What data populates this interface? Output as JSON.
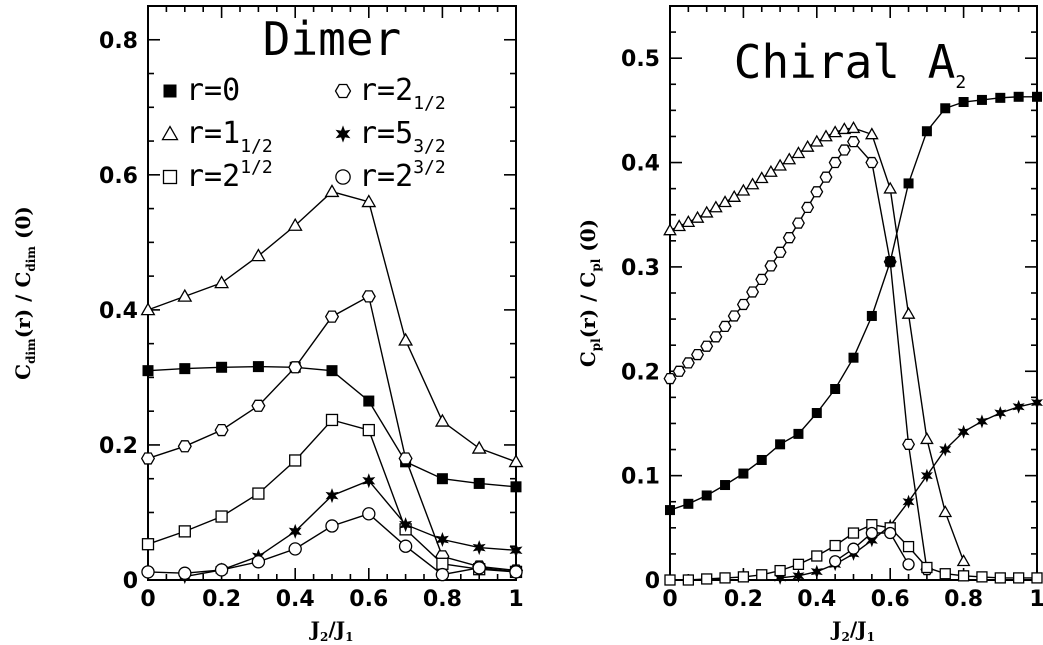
{
  "chart_data": [
    {
      "type": "line",
      "title": "Dimer",
      "xlabel": {
        "main": "J",
        "sub1": "2",
        "mid": "/J",
        "sub2": "1"
      },
      "ylabel": {
        "a": "C",
        "a_sub": "dim",
        "b": "(r) / C",
        "b_sub": "dim",
        "c": " (0)"
      },
      "xlim": [
        0,
        1
      ],
      "ylim": [
        0,
        0.85
      ],
      "xticks": [
        "0",
        "0.2",
        "0.4",
        "0.6",
        "0.8",
        "1"
      ],
      "xtick_values": [
        0,
        0.2,
        0.4,
        0.6,
        0.8,
        1
      ],
      "yticks": [
        "0",
        "0.2",
        "0.4",
        "0.6",
        "0.8"
      ],
      "ytick_values": [
        0,
        0.2,
        0.4,
        0.6,
        0.8
      ],
      "legend_placement": "top",
      "legend": [
        {
          "symbol": "filled-square",
          "base": "r=0",
          "script": "",
          "script_pos": ""
        },
        {
          "symbol": "hexagon",
          "base": "r=2",
          "script": "1/2",
          "script_pos": "sub"
        },
        {
          "symbol": "triangle",
          "base": "r=1",
          "script": "1/2",
          "script_pos": "sub"
        },
        {
          "symbol": "star",
          "base": "r=5",
          "script": "3/2",
          "script_pos": "sub"
        },
        {
          "symbol": "square",
          "base": "r=2",
          "script": "1/2",
          "script_pos": "sup"
        },
        {
          "symbol": "circle",
          "base": "r=2",
          "script": "3/2",
          "script_pos": "sup"
        }
      ],
      "series": [
        {
          "symbol": "triangle",
          "x": [
            0,
            0.1,
            0.2,
            0.3,
            0.4,
            0.5,
            0.6,
            0.7,
            0.8,
            0.9,
            1.0
          ],
          "y": [
            0.4,
            0.42,
            0.44,
            0.48,
            0.525,
            0.575,
            0.56,
            0.355,
            0.235,
            0.195,
            0.175
          ]
        },
        {
          "symbol": "filled-square",
          "x": [
            0,
            0.1,
            0.2,
            0.3,
            0.4,
            0.5,
            0.6,
            0.7,
            0.8,
            0.9,
            1.0
          ],
          "y": [
            0.31,
            0.313,
            0.315,
            0.316,
            0.315,
            0.31,
            0.265,
            0.175,
            0.15,
            0.143,
            0.138
          ]
        },
        {
          "symbol": "hexagon",
          "x": [
            0,
            0.1,
            0.2,
            0.3,
            0.4,
            0.5,
            0.6,
            0.7,
            0.8,
            0.9,
            1.0
          ],
          "y": [
            0.18,
            0.198,
            0.222,
            0.258,
            0.315,
            0.39,
            0.42,
            0.18,
            0.035,
            0.02,
            0.014
          ]
        },
        {
          "symbol": "square",
          "x": [
            0,
            0.1,
            0.2,
            0.3,
            0.4,
            0.5,
            0.6,
            0.7,
            0.8,
            0.9,
            1.0
          ],
          "y": [
            0.053,
            0.072,
            0.094,
            0.128,
            0.177,
            0.237,
            0.222,
            0.075,
            0.024,
            0.016,
            0.012
          ]
        },
        {
          "symbol": "star",
          "x": [
            0.1,
            0.2,
            0.3,
            0.4,
            0.5,
            0.6,
            0.7,
            0.8,
            0.9,
            1.0
          ],
          "y": [
            0.005,
            0.015,
            0.035,
            0.072,
            0.125,
            0.147,
            0.082,
            0.06,
            0.048,
            0.044
          ]
        },
        {
          "symbol": "circle",
          "x": [
            0,
            0.1,
            0.2,
            0.3,
            0.4,
            0.5,
            0.6,
            0.7,
            0.8,
            0.9,
            1.0
          ],
          "y": [
            0.012,
            0.01,
            0.015,
            0.027,
            0.046,
            0.08,
            0.098,
            0.05,
            0.008,
            0.018,
            0.012
          ]
        }
      ]
    },
    {
      "type": "line",
      "title": "Chiral A",
      "title_sub": "2",
      "xlabel": {
        "main": "J",
        "sub1": "2",
        "mid": "/J",
        "sub2": "1"
      },
      "ylabel": {
        "a": "C",
        "a_sub": "pl",
        "b": "(r) / C",
        "b_sub": "pl",
        "c": " (0)"
      },
      "xlim": [
        0,
        1
      ],
      "ylim": [
        0,
        0.55
      ],
      "xticks": [
        "0",
        "0.2",
        "0.4",
        "0.6",
        "0.8",
        "1"
      ],
      "xtick_values": [
        0,
        0.2,
        0.4,
        0.6,
        0.8,
        1
      ],
      "yticks": [
        "0",
        "0.1",
        "0.2",
        "0.3",
        "0.4",
        "0.5"
      ],
      "ytick_values": [
        0,
        0.1,
        0.2,
        0.3,
        0.4,
        0.5
      ],
      "series": [
        {
          "symbol": "triangle",
          "x": [
            0,
            0.025,
            0.05,
            0.075,
            0.1,
            0.125,
            0.15,
            0.175,
            0.2,
            0.225,
            0.25,
            0.275,
            0.3,
            0.325,
            0.35,
            0.375,
            0.4,
            0.425,
            0.45,
            0.475,
            0.5,
            0.55,
            0.6,
            0.65,
            0.7,
            0.75,
            0.8
          ],
          "y": [
            0.335,
            0.339,
            0.343,
            0.347,
            0.352,
            0.357,
            0.362,
            0.367,
            0.373,
            0.379,
            0.385,
            0.391,
            0.397,
            0.403,
            0.409,
            0.415,
            0.42,
            0.425,
            0.429,
            0.432,
            0.433,
            0.427,
            0.375,
            0.255,
            0.135,
            0.065,
            0.018
          ]
        },
        {
          "symbol": "hexagon",
          "x": [
            0,
            0.025,
            0.05,
            0.075,
            0.1,
            0.125,
            0.15,
            0.175,
            0.2,
            0.225,
            0.25,
            0.275,
            0.3,
            0.325,
            0.35,
            0.375,
            0.4,
            0.425,
            0.45,
            0.475,
            0.5,
            0.55,
            0.6,
            0.65,
            0.7
          ],
          "y": [
            0.193,
            0.2,
            0.208,
            0.216,
            0.224,
            0.233,
            0.243,
            0.253,
            0.264,
            0.276,
            0.288,
            0.301,
            0.314,
            0.328,
            0.342,
            0.357,
            0.372,
            0.386,
            0.4,
            0.412,
            0.42,
            0.4,
            0.305,
            0.13,
            0.01
          ]
        },
        {
          "symbol": "filled-square",
          "x": [
            0,
            0.05,
            0.1,
            0.15,
            0.2,
            0.25,
            0.3,
            0.35,
            0.4,
            0.45,
            0.5,
            0.55,
            0.6,
            0.65,
            0.7,
            0.75,
            0.8,
            0.85,
            0.9,
            0.95,
            1.0
          ],
          "y": [
            0.067,
            0.073,
            0.081,
            0.091,
            0.102,
            0.115,
            0.13,
            0.14,
            0.16,
            0.183,
            0.213,
            0.253,
            0.305,
            0.38,
            0.43,
            0.452,
            0.458,
            0.46,
            0.462,
            0.463,
            0.463
          ]
        },
        {
          "symbol": "star",
          "x": [
            0.3,
            0.35,
            0.4,
            0.45,
            0.5,
            0.55,
            0.6,
            0.65,
            0.7,
            0.75,
            0.8,
            0.85,
            0.9,
            0.95,
            1.0
          ],
          "y": [
            0.002,
            0.004,
            0.008,
            0.015,
            0.025,
            0.038,
            0.052,
            0.075,
            0.1,
            0.125,
            0.142,
            0.152,
            0.16,
            0.166,
            0.17
          ]
        },
        {
          "symbol": "square",
          "x": [
            0,
            0.05,
            0.1,
            0.15,
            0.2,
            0.25,
            0.3,
            0.35,
            0.4,
            0.45,
            0.5,
            0.55,
            0.6,
            0.65,
            0.7,
            0.75,
            0.8,
            0.85,
            0.9,
            0.95,
            1.0
          ],
          "y": [
            0,
            0,
            0.001,
            0.002,
            0.003,
            0.005,
            0.009,
            0.015,
            0.023,
            0.033,
            0.045,
            0.053,
            0.05,
            0.032,
            0.012,
            0.006,
            0.004,
            0.003,
            0.002,
            0.002,
            0.002
          ]
        },
        {
          "symbol": "circle",
          "x": [
            0.45,
            0.5,
            0.55,
            0.6,
            0.65
          ],
          "y": [
            0.018,
            0.03,
            0.045,
            0.045,
            0.015
          ]
        }
      ]
    }
  ]
}
